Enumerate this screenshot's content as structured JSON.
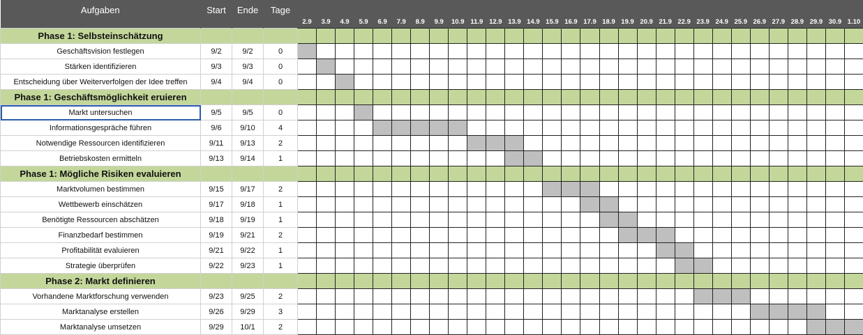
{
  "header": {
    "task": "Aufgaben",
    "start": "Start",
    "end": "Ende",
    "days": "Tage"
  },
  "dates": [
    "2.9",
    "3.9",
    "4.9",
    "5.9",
    "6.9",
    "7.9",
    "8.9",
    "9.9",
    "10.9",
    "11.9",
    "12.9",
    "13.9",
    "14.9",
    "15.9",
    "16.9",
    "17.9",
    "18.9",
    "19.9",
    "20.9",
    "21.9",
    "22.9",
    "23.9",
    "24.9",
    "25.9",
    "26.9",
    "27.9",
    "28.9",
    "29.9",
    "30.9",
    "1.10"
  ],
  "colors": {
    "header": "#595959",
    "phase": "#c4d79b",
    "bar": "#bfbfbf",
    "selection": "#2a5caa"
  },
  "rows": [
    {
      "phase": "Phase 1: Selbsteinschätzung"
    },
    {
      "task": "Geschäftsvision festlegen",
      "start": "9/2",
      "end": "9/2",
      "days": "0"
    },
    {
      "task": "Stärken identifizieren",
      "start": "9/3",
      "end": "9/3",
      "days": "0"
    },
    {
      "task": "Entscheidung über Weiterverfolgen der Idee treffen",
      "start": "9/4",
      "end": "9/4",
      "days": "0"
    },
    {
      "phase": "Phase 1: Geschäftsmöglichkeit eruieren"
    },
    {
      "task": "Markt untersuchen",
      "start": "9/5",
      "end": "9/5",
      "days": "0",
      "selected": true
    },
    {
      "task": "Informationsgespräche führen",
      "start": "9/6",
      "end": "9/10",
      "days": "4"
    },
    {
      "task": "Notwendige Ressourcen identifizieren",
      "start": "9/11",
      "end": "9/13",
      "days": "2"
    },
    {
      "task": "Betriebskosten ermitteln",
      "start": "9/13",
      "end": "9/14",
      "days": "1"
    },
    {
      "phase": "Phase 1: Mögliche Risiken evaluieren"
    },
    {
      "task": "Marktvolumen bestimmen",
      "start": "9/15",
      "end": "9/17",
      "days": "2"
    },
    {
      "task": "Wettbewerb einschätzen",
      "start": "9/17",
      "end": "9/18",
      "days": "1"
    },
    {
      "task": "Benötigte Ressourcen abschätzen",
      "start": "9/18",
      "end": "9/19",
      "days": "1"
    },
    {
      "task": "Finanzbedarf bestimmen",
      "start": "9/19",
      "end": "9/21",
      "days": "2"
    },
    {
      "task": "Profitabilität evaluieren",
      "start": "9/21",
      "end": "9/22",
      "days": "1"
    },
    {
      "task": "Strategie überprüfen",
      "start": "9/22",
      "end": "9/23",
      "days": "1"
    },
    {
      "phase": "Phase 2: Markt definieren"
    },
    {
      "task": "Vorhandene Marktforschung verwenden",
      "start": "9/23",
      "end": "9/25",
      "days": "2"
    },
    {
      "task": "Marktanalyse erstellen",
      "start": "9/26",
      "end": "9/29",
      "days": "3"
    },
    {
      "task": "Marktanalyse umsetzen",
      "start": "9/29",
      "end": "10/1",
      "days": "2"
    }
  ]
}
